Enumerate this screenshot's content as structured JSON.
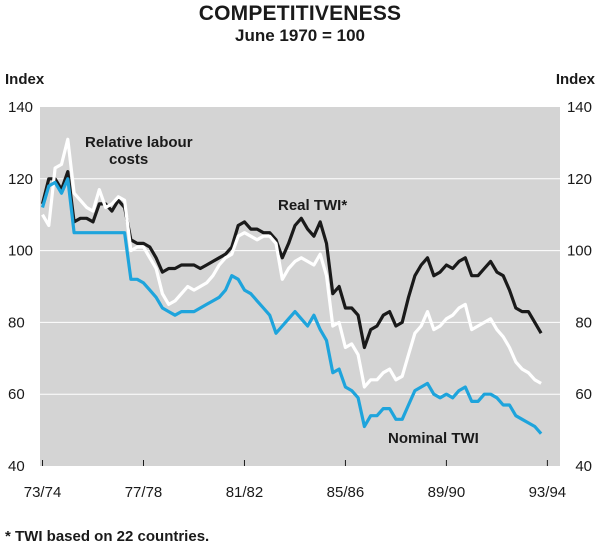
{
  "chart_data": {
    "type": "line",
    "title": "COMPETITIVENESS",
    "subtitle": "June 1970 = 100",
    "ylabel_left": "Index",
    "ylabel_right": "Index",
    "ylim": [
      40,
      140
    ],
    "yticks": [
      40,
      60,
      80,
      100,
      120,
      140
    ],
    "xlim": [
      1973.4,
      1994.0
    ],
    "xticks": [
      {
        "x": 1973.5,
        "label": "73/74"
      },
      {
        "x": 1977.5,
        "label": "77/78"
      },
      {
        "x": 1981.5,
        "label": "81/82"
      },
      {
        "x": 1985.5,
        "label": "85/86"
      },
      {
        "x": 1989.5,
        "label": "89/90"
      },
      {
        "x": 1993.5,
        "label": "93/94"
      }
    ],
    "annotations": [
      {
        "text": "Relative labour",
        "series": "Relative labour costs"
      },
      {
        "text": "costs",
        "series": "Relative labour costs"
      },
      {
        "text": "Real TWI*",
        "series": "Real TWI*"
      },
      {
        "text": "Nominal TWI",
        "series": "Nominal TWI"
      }
    ],
    "series": [
      {
        "name": "Real TWI*",
        "color": "#1a1a1a",
        "points": [
          [
            1973.5,
            113
          ],
          [
            1973.75,
            120
          ],
          [
            1974.0,
            120
          ],
          [
            1974.25,
            117
          ],
          [
            1974.5,
            122
          ],
          [
            1974.75,
            108
          ],
          [
            1975.0,
            109
          ],
          [
            1975.25,
            109
          ],
          [
            1975.5,
            108
          ],
          [
            1975.75,
            113
          ],
          [
            1976.0,
            113
          ],
          [
            1976.25,
            111
          ],
          [
            1976.5,
            114
          ],
          [
            1976.75,
            112
          ],
          [
            1977.0,
            103
          ],
          [
            1977.25,
            102
          ],
          [
            1977.5,
            102
          ],
          [
            1977.75,
            101
          ],
          [
            1978.0,
            98
          ],
          [
            1978.25,
            94
          ],
          [
            1978.5,
            95
          ],
          [
            1978.75,
            95
          ],
          [
            1979.0,
            96
          ],
          [
            1979.25,
            96
          ],
          [
            1979.5,
            96
          ],
          [
            1979.75,
            95
          ],
          [
            1980.0,
            96
          ],
          [
            1980.25,
            97
          ],
          [
            1980.5,
            98
          ],
          [
            1980.75,
            99
          ],
          [
            1981.0,
            101
          ],
          [
            1981.25,
            107
          ],
          [
            1981.5,
            108
          ],
          [
            1981.75,
            106
          ],
          [
            1982.0,
            106
          ],
          [
            1982.25,
            105
          ],
          [
            1982.5,
            105
          ],
          [
            1982.75,
            103
          ],
          [
            1983.0,
            98
          ],
          [
            1983.25,
            102
          ],
          [
            1983.5,
            107
          ],
          [
            1983.75,
            109
          ],
          [
            1984.0,
            106
          ],
          [
            1984.25,
            104
          ],
          [
            1984.5,
            108
          ],
          [
            1984.75,
            102
          ],
          [
            1985.0,
            88
          ],
          [
            1985.25,
            90
          ],
          [
            1985.5,
            84
          ],
          [
            1985.75,
            84
          ],
          [
            1986.0,
            82
          ],
          [
            1986.25,
            73
          ],
          [
            1986.5,
            78
          ],
          [
            1986.75,
            79
          ],
          [
            1987.0,
            82
          ],
          [
            1987.25,
            83
          ],
          [
            1987.5,
            79
          ],
          [
            1987.75,
            80
          ],
          [
            1988.0,
            87
          ],
          [
            1988.25,
            93
          ],
          [
            1988.5,
            96
          ],
          [
            1988.75,
            98
          ],
          [
            1989.0,
            93
          ],
          [
            1989.25,
            94
          ],
          [
            1989.5,
            96
          ],
          [
            1989.75,
            95
          ],
          [
            1990.0,
            97
          ],
          [
            1990.25,
            98
          ],
          [
            1990.5,
            93
          ],
          [
            1990.75,
            93
          ],
          [
            1991.0,
            95
          ],
          [
            1991.25,
            97
          ],
          [
            1991.5,
            94
          ],
          [
            1991.75,
            93
          ],
          [
            1992.0,
            89
          ],
          [
            1992.25,
            84
          ],
          [
            1992.5,
            83
          ],
          [
            1992.75,
            83
          ],
          [
            1993.0,
            80
          ],
          [
            1993.25,
            77
          ]
        ]
      },
      {
        "name": "Relative labour costs",
        "color": "#ffffff",
        "points": [
          [
            1973.5,
            110
          ],
          [
            1973.75,
            107
          ],
          [
            1974.0,
            123
          ],
          [
            1974.25,
            124
          ],
          [
            1974.5,
            131
          ],
          [
            1974.75,
            116
          ],
          [
            1975.0,
            114
          ],
          [
            1975.25,
            112
          ],
          [
            1975.5,
            111
          ],
          [
            1975.75,
            117
          ],
          [
            1976.0,
            112
          ],
          [
            1976.25,
            113
          ],
          [
            1976.5,
            115
          ],
          [
            1976.75,
            114
          ],
          [
            1977.0,
            100
          ],
          [
            1977.25,
            101
          ],
          [
            1977.5,
            101
          ],
          [
            1977.75,
            98
          ],
          [
            1978.0,
            95
          ],
          [
            1978.25,
            88
          ],
          [
            1978.5,
            85
          ],
          [
            1978.75,
            86
          ],
          [
            1979.0,
            88
          ],
          [
            1979.25,
            90
          ],
          [
            1979.5,
            89
          ],
          [
            1979.75,
            90
          ],
          [
            1980.0,
            91
          ],
          [
            1980.25,
            93
          ],
          [
            1980.5,
            96
          ],
          [
            1980.75,
            98
          ],
          [
            1981.0,
            99
          ],
          [
            1981.25,
            104
          ],
          [
            1981.5,
            105
          ],
          [
            1981.75,
            104
          ],
          [
            1982.0,
            103
          ],
          [
            1982.25,
            104
          ],
          [
            1982.5,
            104
          ],
          [
            1982.75,
            102
          ],
          [
            1983.0,
            92
          ],
          [
            1983.25,
            95
          ],
          [
            1983.5,
            97
          ],
          [
            1983.75,
            98
          ],
          [
            1984.0,
            97
          ],
          [
            1984.25,
            96
          ],
          [
            1984.5,
            99
          ],
          [
            1984.75,
            93
          ],
          [
            1985.0,
            79
          ],
          [
            1985.25,
            80
          ],
          [
            1985.5,
            73
          ],
          [
            1985.75,
            74
          ],
          [
            1986.0,
            71
          ],
          [
            1986.25,
            62
          ],
          [
            1986.5,
            64
          ],
          [
            1986.75,
            64
          ],
          [
            1987.0,
            66
          ],
          [
            1987.25,
            67
          ],
          [
            1987.5,
            64
          ],
          [
            1987.75,
            65
          ],
          [
            1988.0,
            71
          ],
          [
            1988.25,
            77
          ],
          [
            1988.5,
            79
          ],
          [
            1988.75,
            83
          ],
          [
            1989.0,
            78
          ],
          [
            1989.25,
            79
          ],
          [
            1989.5,
            81
          ],
          [
            1989.75,
            82
          ],
          [
            1990.0,
            84
          ],
          [
            1990.25,
            85
          ],
          [
            1990.5,
            78
          ],
          [
            1990.75,
            79
          ],
          [
            1991.0,
            80
          ],
          [
            1991.25,
            81
          ],
          [
            1991.5,
            78
          ],
          [
            1991.75,
            76
          ],
          [
            1992.0,
            73
          ],
          [
            1992.25,
            69
          ],
          [
            1992.5,
            67
          ],
          [
            1992.75,
            66
          ],
          [
            1993.0,
            64
          ],
          [
            1993.25,
            63
          ]
        ]
      },
      {
        "name": "Nominal TWI",
        "color": "#1ea4dc",
        "points": [
          [
            1973.5,
            112
          ],
          [
            1973.75,
            118
          ],
          [
            1974.0,
            119
          ],
          [
            1974.25,
            116
          ],
          [
            1974.5,
            120
          ],
          [
            1974.75,
            105
          ],
          [
            1975.0,
            105
          ],
          [
            1975.5,
            105
          ],
          [
            1976.0,
            105
          ],
          [
            1976.5,
            105
          ],
          [
            1976.75,
            105
          ],
          [
            1977.0,
            92
          ],
          [
            1977.25,
            92
          ],
          [
            1977.5,
            91
          ],
          [
            1977.75,
            89
          ],
          [
            1978.0,
            87
          ],
          [
            1978.25,
            84
          ],
          [
            1978.5,
            83
          ],
          [
            1978.75,
            82
          ],
          [
            1979.0,
            83
          ],
          [
            1979.25,
            83
          ],
          [
            1979.5,
            83
          ],
          [
            1979.75,
            84
          ],
          [
            1980.0,
            85
          ],
          [
            1980.25,
            86
          ],
          [
            1980.5,
            87
          ],
          [
            1980.75,
            89
          ],
          [
            1981.0,
            93
          ],
          [
            1981.25,
            92
          ],
          [
            1981.5,
            89
          ],
          [
            1981.75,
            88
          ],
          [
            1982.0,
            86
          ],
          [
            1982.25,
            84
          ],
          [
            1982.5,
            82
          ],
          [
            1982.75,
            77
          ],
          [
            1983.0,
            79
          ],
          [
            1983.25,
            81
          ],
          [
            1983.5,
            83
          ],
          [
            1983.75,
            81
          ],
          [
            1984.0,
            79
          ],
          [
            1984.25,
            82
          ],
          [
            1984.5,
            78
          ],
          [
            1984.75,
            75
          ],
          [
            1985.0,
            66
          ],
          [
            1985.25,
            67
          ],
          [
            1985.5,
            62
          ],
          [
            1985.75,
            61
          ],
          [
            1986.0,
            59
          ],
          [
            1986.25,
            51
          ],
          [
            1986.5,
            54
          ],
          [
            1986.75,
            54
          ],
          [
            1987.0,
            56
          ],
          [
            1987.25,
            56
          ],
          [
            1987.5,
            53
          ],
          [
            1987.75,
            53
          ],
          [
            1988.0,
            57
          ],
          [
            1988.25,
            61
          ],
          [
            1988.5,
            62
          ],
          [
            1988.75,
            63
          ],
          [
            1989.0,
            60
          ],
          [
            1989.25,
            59
          ],
          [
            1989.5,
            60
          ],
          [
            1989.75,
            59
          ],
          [
            1990.0,
            61
          ],
          [
            1990.25,
            62
          ],
          [
            1990.5,
            58
          ],
          [
            1990.75,
            58
          ],
          [
            1991.0,
            60
          ],
          [
            1991.25,
            60
          ],
          [
            1991.5,
            59
          ],
          [
            1991.75,
            57
          ],
          [
            1992.0,
            57
          ],
          [
            1992.25,
            54
          ],
          [
            1992.5,
            53
          ],
          [
            1992.75,
            52
          ],
          [
            1993.0,
            51
          ],
          [
            1993.25,
            49
          ]
        ]
      }
    ]
  },
  "footnote": "* TWI based on 22 countries."
}
